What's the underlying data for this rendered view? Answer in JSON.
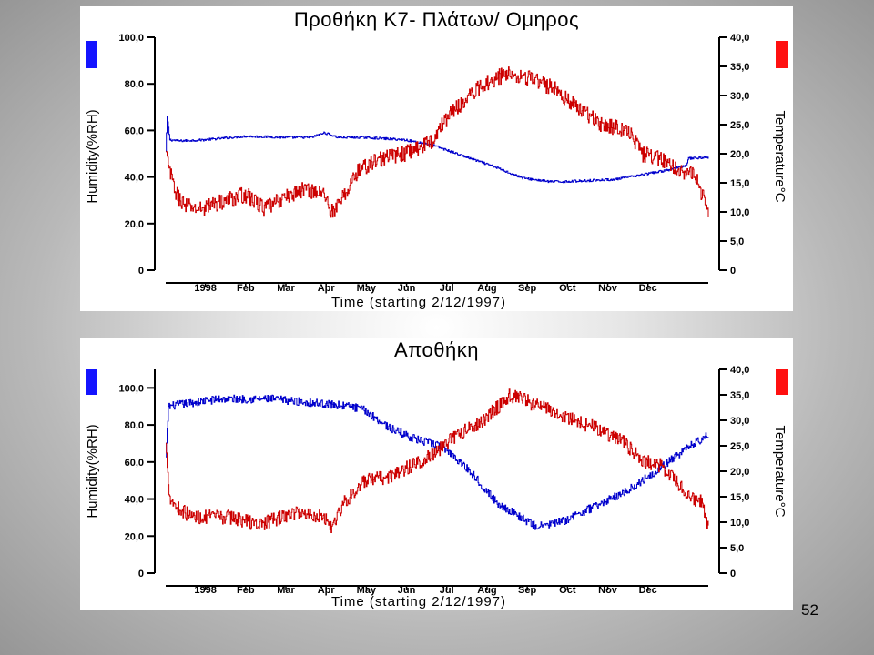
{
  "page": {
    "page_number": "52"
  },
  "months": [
    "1998",
    "Feb",
    "Mar",
    "Apr",
    "May",
    "Jun",
    "Jul",
    "Aug",
    "Sep",
    "Oct",
    "Nov",
    "Dec"
  ],
  "colors": {
    "humidity": "#0000cc",
    "temperature": "#cc0000",
    "humidity_marker": "#1414ff",
    "temperature_marker": "#ff1010"
  },
  "chart_data": [
    {
      "type": "line",
      "title": "Προθήκη Κ7- Πλάτων/ Ομηρος",
      "xlabel": "Time (starting 2/12/1997)",
      "ylabel_left": "Humidity(%RH)",
      "ylabel_right": "Temperature°C",
      "ylim_left": [
        0,
        100
      ],
      "ylim_right": [
        0,
        40
      ],
      "yticks_left": [
        "0",
        "20,0",
        "40,0",
        "60,0",
        "80,0",
        "100,0"
      ],
      "yticks_right": [
        "0",
        "5,0",
        "10,0",
        "15,0",
        "20,0",
        "25,0",
        "30,0",
        "35,0",
        "40,0"
      ],
      "x_day_offset": 30,
      "series": [
        {
          "name": "Humidity",
          "axis": "left",
          "noise": 0.5,
          "points": [
            [
              0,
              51
            ],
            [
              1,
              66
            ],
            [
              3,
              56
            ],
            [
              10,
              55.5
            ],
            [
              30,
              56
            ],
            [
              60,
              57.5
            ],
            [
              90,
              57
            ],
            [
              110,
              57
            ],
            [
              120,
              59
            ],
            [
              130,
              57
            ],
            [
              150,
              57
            ],
            [
              180,
              56
            ],
            [
              200,
              54
            ],
            [
              230,
              48
            ],
            [
              250,
              44
            ],
            [
              270,
              39.5
            ],
            [
              290,
              38
            ],
            [
              300,
              38
            ],
            [
              320,
              38.5
            ],
            [
              340,
              39
            ],
            [
              360,
              41
            ],
            [
              380,
              43
            ],
            [
              393,
              45
            ],
            [
              395,
              48
            ],
            [
              410,
              48.5
            ]
          ]
        },
        {
          "name": "Temperature",
          "axis": "right",
          "noise": 1.4,
          "points": [
            [
              0,
              20
            ],
            [
              4,
              16
            ],
            [
              8,
              13
            ],
            [
              15,
              11
            ],
            [
              25,
              10.5
            ],
            [
              45,
              12
            ],
            [
              60,
              13
            ],
            [
              75,
              10.5
            ],
            [
              90,
              12.5
            ],
            [
              105,
              14
            ],
            [
              120,
              13
            ],
            [
              125,
              10
            ],
            [
              130,
              11
            ],
            [
              145,
              17
            ],
            [
              160,
              19
            ],
            [
              180,
              20
            ],
            [
              200,
              22
            ],
            [
              215,
              27
            ],
            [
              240,
              32
            ],
            [
              260,
              34
            ],
            [
              275,
              33
            ],
            [
              295,
              31
            ],
            [
              310,
              28
            ],
            [
              330,
              25
            ],
            [
              350,
              24
            ],
            [
              360,
              20
            ],
            [
              375,
              19
            ],
            [
              400,
              16
            ],
            [
              410,
              10
            ]
          ]
        }
      ]
    },
    {
      "type": "line",
      "title": "Αποθήκη",
      "xlabel": "Time (starting 2/12/1997)",
      "ylabel_left": "Humidity(%RH)",
      "ylabel_right": "Temperature°C",
      "ylim_left": [
        0,
        110
      ],
      "ylim_right": [
        0,
        40
      ],
      "yticks_left": [
        "0",
        "20,0",
        "40,0",
        "60,0",
        "80,0",
        "100,0"
      ],
      "yticks_right": [
        "0",
        "5,0",
        "10,0",
        "15,0",
        "20,0",
        "25,0",
        "30,0",
        "35,0",
        "40,0"
      ],
      "x_day_offset": 30,
      "series": [
        {
          "name": "Humidity",
          "axis": "left",
          "noise": 2.2,
          "points": [
            [
              0,
              62
            ],
            [
              2,
              90
            ],
            [
              10,
              91
            ],
            [
              40,
              94
            ],
            [
              80,
              94
            ],
            [
              110,
              92
            ],
            [
              140,
              90
            ],
            [
              150,
              88
            ],
            [
              170,
              78
            ],
            [
              190,
              72
            ],
            [
              210,
              68
            ],
            [
              230,
              55
            ],
            [
              250,
              38
            ],
            [
              280,
              25
            ],
            [
              300,
              28
            ],
            [
              330,
              38
            ],
            [
              350,
              45
            ],
            [
              370,
              55
            ],
            [
              395,
              68
            ],
            [
              410,
              75
            ]
          ]
        },
        {
          "name": "Temperature",
          "axis": "right",
          "noise": 1.4,
          "points": [
            [
              0,
              25
            ],
            [
              3,
              15
            ],
            [
              8,
              13
            ],
            [
              20,
              11
            ],
            [
              50,
              11
            ],
            [
              70,
              9.5
            ],
            [
              100,
              12
            ],
            [
              120,
              11
            ],
            [
              125,
              9
            ],
            [
              135,
              14
            ],
            [
              150,
              18
            ],
            [
              170,
              19
            ],
            [
              200,
              23
            ],
            [
              220,
              27
            ],
            [
              240,
              30
            ],
            [
              260,
              35
            ],
            [
              280,
              33
            ],
            [
              300,
              31
            ],
            [
              320,
              29
            ],
            [
              345,
              26
            ],
            [
              360,
              22
            ],
            [
              375,
              21
            ],
            [
              395,
              15
            ],
            [
              405,
              14
            ],
            [
              410,
              9
            ]
          ]
        }
      ]
    }
  ]
}
